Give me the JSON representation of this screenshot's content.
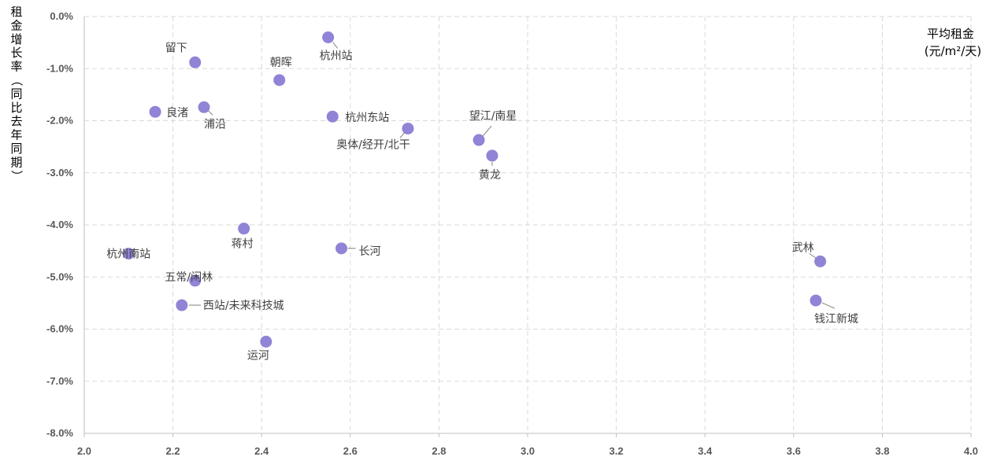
{
  "chart_data": {
    "type": "scatter",
    "xlabel": "平均租金",
    "xlabel_unit": "(元/m²/天)",
    "ylabel": "租金增长率（同比去年同期）",
    "xlim": [
      2.0,
      4.0
    ],
    "ylim": [
      -8.0,
      0.0
    ],
    "x_ticks": [
      "2.0",
      "2.2",
      "2.4",
      "2.6",
      "2.8",
      "3.0",
      "3.2",
      "3.4",
      "3.6",
      "3.8",
      "4.0"
    ],
    "y_ticks": [
      "0.0%",
      "-1.0%",
      "-2.0%",
      "-3.0%",
      "-4.0%",
      "-5.0%",
      "-6.0%",
      "-7.0%",
      "-8.0%"
    ],
    "grid": true,
    "marker_color": "#8f84d6",
    "points": [
      {
        "label": "杭州站",
        "x": 2.55,
        "y": -0.4
      },
      {
        "label": "留下",
        "x": 2.25,
        "y": -0.88
      },
      {
        "label": "朝晖",
        "x": 2.44,
        "y": -1.22
      },
      {
        "label": "浦沿",
        "x": 2.27,
        "y": -1.74
      },
      {
        "label": "良渚",
        "x": 2.16,
        "y": -1.83
      },
      {
        "label": "杭州东站",
        "x": 2.56,
        "y": -1.92
      },
      {
        "label": "奥体/经开/北干",
        "x": 2.73,
        "y": -2.15
      },
      {
        "label": "望江/南星",
        "x": 2.89,
        "y": -2.37
      },
      {
        "label": "黄龙",
        "x": 2.92,
        "y": -2.67
      },
      {
        "label": "蒋村",
        "x": 2.36,
        "y": -4.07
      },
      {
        "label": "长河",
        "x": 2.58,
        "y": -4.45
      },
      {
        "label": "杭州南站",
        "x": 2.1,
        "y": -4.55
      },
      {
        "label": "武林",
        "x": 3.66,
        "y": -4.7
      },
      {
        "label": "五常/闲林",
        "x": 2.25,
        "y": -5.07
      },
      {
        "label": "钱江新城",
        "x": 3.65,
        "y": -5.45
      },
      {
        "label": "西站/未来科技城",
        "x": 2.22,
        "y": -5.54
      },
      {
        "label": "运河",
        "x": 2.41,
        "y": -6.24
      }
    ]
  }
}
